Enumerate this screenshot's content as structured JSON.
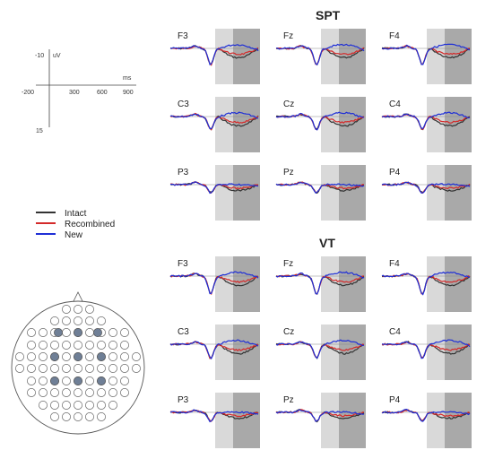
{
  "scale_bar": {
    "amplitude_label": "uV",
    "time_label": "ms",
    "y_ticks": [
      "-10",
      "15"
    ],
    "x_ticks": [
      "-200",
      "300",
      "600",
      "900"
    ]
  },
  "legend": [
    {
      "label": "Intact",
      "color": "#333333"
    },
    {
      "label": "Recombined",
      "color": "#d42a2a"
    },
    {
      "label": "New",
      "color": "#1f2fd6"
    }
  ],
  "shading": {
    "light_window_color": "#d9d9d9",
    "dark_window_color": "#a9a9a9"
  },
  "chart_data": [
    {
      "type": "line",
      "title": "SPT",
      "channels": [
        "F3",
        "Fz",
        "F4",
        "C3",
        "Cz",
        "C4",
        "P3",
        "Pz",
        "P4"
      ],
      "series": [
        {
          "name": "Intact"
        },
        {
          "name": "Recombined"
        },
        {
          "name": "New"
        }
      ]
    },
    {
      "type": "line",
      "title": "VT",
      "channels": [
        "F3",
        "Fz",
        "F4",
        "C3",
        "Cz",
        "C4",
        "P3",
        "Pz",
        "P4"
      ],
      "series": [
        {
          "name": "Intact"
        },
        {
          "name": "Recombined"
        },
        {
          "name": "New"
        }
      ]
    }
  ],
  "head_map": {
    "highlighted_color": "#6f7f96",
    "electrode_color": "#ffffff"
  }
}
